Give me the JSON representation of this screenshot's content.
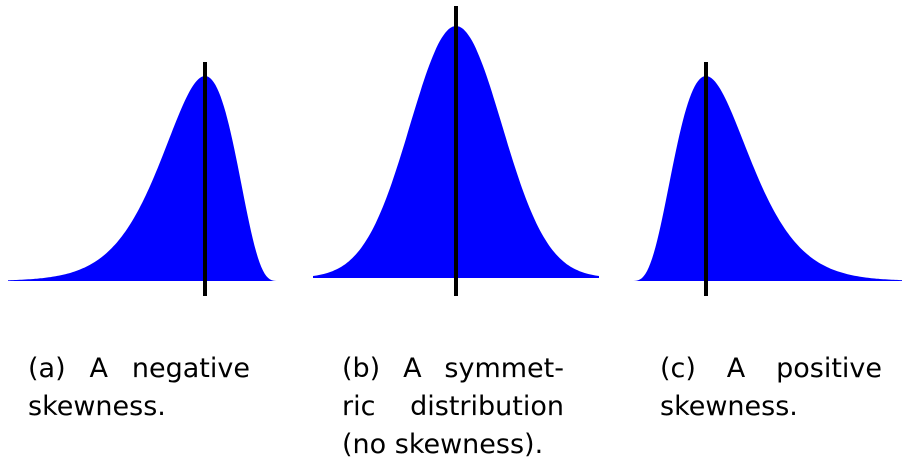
{
  "fill_color": "#0000ff",
  "line_color": "#000000",
  "panels": [
    {
      "id": "a",
      "skew": "negative",
      "caption_lines": [
        "(a) A negative",
        "skewness."
      ]
    },
    {
      "id": "b",
      "skew": "none",
      "caption_lines": [
        "(b) A symmet-",
        "ric distribution",
        "(no skewness)."
      ]
    },
    {
      "id": "c",
      "skew": "positive",
      "caption_lines": [
        "(c) A positive",
        "skewness."
      ]
    }
  ]
}
